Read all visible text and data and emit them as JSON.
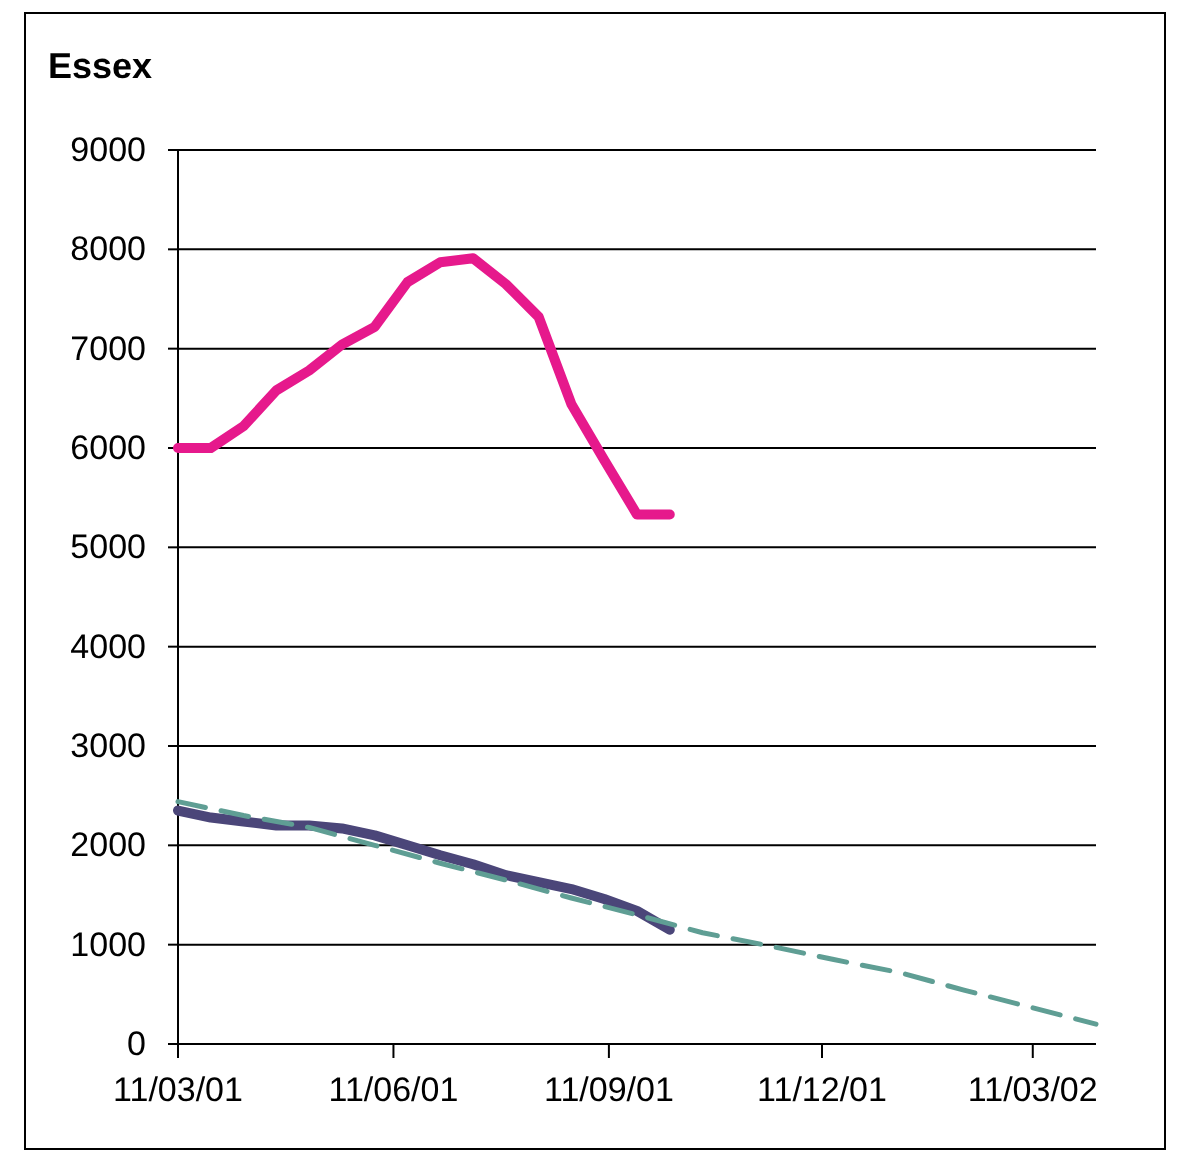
{
  "chart_data": {
    "type": "line",
    "title": "Essex",
    "xlim": [
      "2001-03-11",
      "2002-04-07"
    ],
    "xticks": [
      {
        "value": "2001-03-11",
        "label": "11/03/01"
      },
      {
        "value": "2001-06-11",
        "label": "11/06/01"
      },
      {
        "value": "2001-09-11",
        "label": "11/09/01"
      },
      {
        "value": "2001-12-11",
        "label": "11/12/01"
      },
      {
        "value": "2002-03-11",
        "label": "11/03/02"
      }
    ],
    "ylim": [
      0,
      9000
    ],
    "yticks": [
      0,
      1000,
      2000,
      3000,
      4000,
      5000,
      6000,
      7000,
      8000,
      9000
    ],
    "grid": "y",
    "marker": "none",
    "series": [
      {
        "color": "#e6198c",
        "line_style": "solid",
        "x": [
          "2001-03-11",
          "2001-03-25",
          "2001-04-08",
          "2001-04-22",
          "2001-05-06",
          "2001-05-20",
          "2001-06-03",
          "2001-06-17",
          "2001-07-01",
          "2001-07-15",
          "2001-07-29",
          "2001-08-12",
          "2001-08-26",
          "2001-09-09",
          "2001-09-23",
          "2001-10-07"
        ],
        "values": [
          6000,
          6000,
          6220,
          6580,
          6780,
          7040,
          7220,
          7670,
          7870,
          7910,
          7650,
          7320,
          6440,
          5880,
          5330,
          5330
        ]
      },
      {
        "color": "#4b4679",
        "line_style": "solid",
        "x": [
          "2001-03-11",
          "2001-03-25",
          "2001-04-08",
          "2001-04-22",
          "2001-05-06",
          "2001-05-20",
          "2001-06-03",
          "2001-06-17",
          "2001-07-01",
          "2001-07-15",
          "2001-07-29",
          "2001-08-12",
          "2001-08-26",
          "2001-09-09",
          "2001-09-23",
          "2001-10-07"
        ],
        "values": [
          2350,
          2280,
          2240,
          2200,
          2200,
          2170,
          2100,
          2000,
          1900,
          1810,
          1700,
          1630,
          1560,
          1460,
          1340,
          1150
        ]
      },
      {
        "color": "#5f9e94",
        "line_style": "dashed",
        "x": [
          "2001-03-11",
          "2001-04-08",
          "2001-05-06",
          "2001-06-03",
          "2001-07-01",
          "2001-07-29",
          "2001-08-26",
          "2001-09-23",
          "2001-10-21",
          "2001-11-18",
          "2001-12-16",
          "2002-01-13",
          "2002-02-10",
          "2002-03-10",
          "2002-04-07"
        ],
        "values": [
          2440,
          2300,
          2180,
          2000,
          1820,
          1650,
          1470,
          1300,
          1120,
          990,
          850,
          720,
          540,
          370,
          200
        ]
      }
    ]
  }
}
